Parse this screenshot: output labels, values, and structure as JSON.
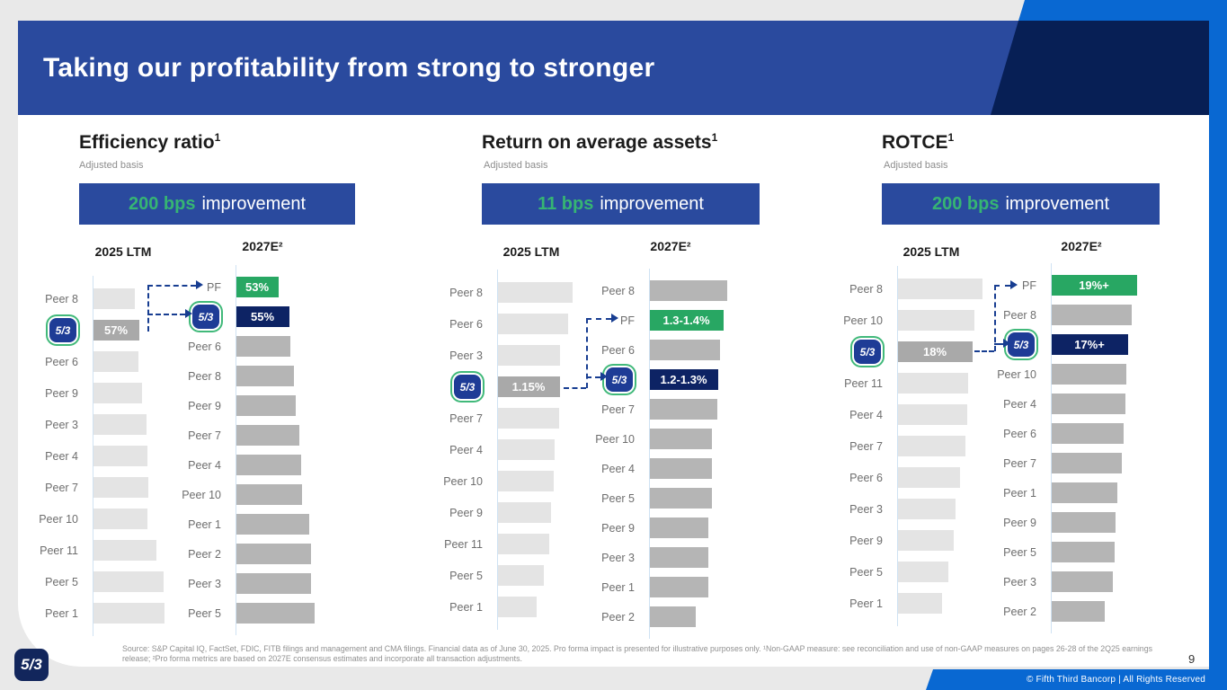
{
  "header": {
    "title": "Taking our profitability from strong to stronger"
  },
  "footer": {
    "footnote": "Source: S&P Capital IQ, FactSet, FDIC, FITB filings and management and CMA filings. Financial data as of June 30, 2025. Pro forma impact is presented for illustrative purposes only. ¹Non-GAAP measure: see reconciliation and use of non-GAAP measures on pages 26-28 of the 2Q25 earnings release; ²Pro forma metrics are based on 2027E consensus estimates and incorporate all transaction adjustments.",
    "page_number": "9",
    "copyright": "© Fifth Third Bancorp | All Rights Reserved"
  },
  "colors": {
    "header_blue": "#2a4a9e",
    "navy": "#071f55",
    "bright_blue": "#0968d2",
    "green": "#28a763",
    "banner_green_text": "#36b573",
    "peer_light": "#e4e4e4",
    "peer_mid": "#b5b5b5",
    "fitb_gray": "#a9a9a9",
    "fitb_navy": "#0d2364"
  },
  "panels": [
    {
      "title": "Efficiency ratio",
      "title_sup": "1",
      "subtitle": "Adjusted basis",
      "banner_highlight": "200 bps",
      "banner_rest": "improvement",
      "col_left": "2025 LTM",
      "col_right": "2027E²"
    },
    {
      "title": "Return on average assets",
      "title_sup": "1",
      "subtitle": "Adjusted basis",
      "banner_highlight": "11 bps",
      "banner_rest": "improvement",
      "col_left": "2025 LTM",
      "col_right": "2027E²"
    },
    {
      "title": "ROTCE",
      "title_sup": "1",
      "subtitle": "Adjusted basis",
      "banner_highlight": "200 bps",
      "banner_rest": "improvement",
      "col_left": "2025 LTM",
      "col_right": "2027E²"
    }
  ],
  "chart_data": [
    {
      "panel": "Efficiency ratio",
      "column": "2025 LTM",
      "type": "bar",
      "orientation": "horizontal",
      "note": "peer bars unlabeled; len = relative bar length (px)",
      "rows": [
        {
          "label": "Peer 8",
          "style": "peer-light",
          "len": 47
        },
        {
          "label": "5/3",
          "logo": true,
          "value": "57%",
          "style": "fitb-gray",
          "len": 52
        },
        {
          "label": "Peer 6",
          "style": "peer-light",
          "len": 51
        },
        {
          "label": "Peer 9",
          "style": "peer-light",
          "len": 55
        },
        {
          "label": "Peer 3",
          "style": "peer-light",
          "len": 60
        },
        {
          "label": "Peer 4",
          "style": "peer-light",
          "len": 61
        },
        {
          "label": "Peer 7",
          "style": "peer-light",
          "len": 62
        },
        {
          "label": "Peer 10",
          "style": "peer-light",
          "len": 61
        },
        {
          "label": "Peer 11",
          "style": "peer-light",
          "len": 71
        },
        {
          "label": "Peer 5",
          "style": "peer-light",
          "len": 79
        },
        {
          "label": "Peer 1",
          "style": "peer-light",
          "len": 80
        }
      ]
    },
    {
      "panel": "Efficiency ratio",
      "column": "2027E²",
      "type": "bar",
      "orientation": "horizontal",
      "rows": [
        {
          "label": "PF",
          "value": "53%",
          "style": "pf-green",
          "len": 48
        },
        {
          "label": "5/3",
          "logo": true,
          "value": "55%",
          "style": "fitb-navy",
          "len": 60
        },
        {
          "label": "Peer 6",
          "style": "peer-mid",
          "len": 61
        },
        {
          "label": "Peer 8",
          "style": "peer-mid",
          "len": 65
        },
        {
          "label": "Peer 9",
          "style": "peer-mid",
          "len": 67
        },
        {
          "label": "Peer 7",
          "style": "peer-mid",
          "len": 71
        },
        {
          "label": "Peer 4",
          "style": "peer-mid",
          "len": 73
        },
        {
          "label": "Peer 10",
          "style": "peer-mid",
          "len": 74
        },
        {
          "label": "Peer 1",
          "style": "peer-mid",
          "len": 82
        },
        {
          "label": "Peer 2",
          "style": "peer-mid",
          "len": 84
        },
        {
          "label": "Peer 3",
          "style": "peer-mid",
          "len": 84
        },
        {
          "label": "Peer 5",
          "style": "peer-mid",
          "len": 88
        }
      ]
    },
    {
      "panel": "Return on average assets",
      "column": "2025 LTM",
      "type": "bar",
      "orientation": "horizontal",
      "rows": [
        {
          "label": "Peer 8",
          "style": "peer-light",
          "len": 84
        },
        {
          "label": "Peer 6",
          "style": "peer-light",
          "len": 79
        },
        {
          "label": "Peer 3",
          "style": "peer-light",
          "len": 70
        },
        {
          "label": "5/3",
          "logo": true,
          "value": "1.15%",
          "style": "fitb-gray",
          "len": 70
        },
        {
          "label": "Peer 7",
          "style": "peer-light",
          "len": 69
        },
        {
          "label": "Peer 4",
          "style": "peer-light",
          "len": 64
        },
        {
          "label": "Peer 10",
          "style": "peer-light",
          "len": 63
        },
        {
          "label": "Peer 9",
          "style": "peer-light",
          "len": 60
        },
        {
          "label": "Peer 11",
          "style": "peer-light",
          "len": 58
        },
        {
          "label": "Peer 5",
          "style": "peer-light",
          "len": 52
        },
        {
          "label": "Peer 1",
          "style": "peer-light",
          "len": 44
        }
      ]
    },
    {
      "panel": "Return on average assets",
      "column": "2027E²",
      "type": "bar",
      "orientation": "horizontal",
      "rows": [
        {
          "label": "Peer 8",
          "style": "peer-mid",
          "len": 87
        },
        {
          "label": "PF",
          "value": "1.3-1.4%",
          "style": "pf-green",
          "len": 83
        },
        {
          "label": "Peer 6",
          "style": "peer-mid",
          "len": 79
        },
        {
          "label": "5/3",
          "logo": true,
          "value": "1.2-1.3%",
          "style": "fitb-navy",
          "len": 77
        },
        {
          "label": "Peer 7",
          "style": "peer-mid",
          "len": 76
        },
        {
          "label": "Peer 10",
          "style": "peer-mid",
          "len": 70
        },
        {
          "label": "Peer 4",
          "style": "peer-mid",
          "len": 70
        },
        {
          "label": "Peer 5",
          "style": "peer-mid",
          "len": 70
        },
        {
          "label": "Peer 9",
          "style": "peer-mid",
          "len": 66
        },
        {
          "label": "Peer 3",
          "style": "peer-mid",
          "len": 66
        },
        {
          "label": "Peer 1",
          "style": "peer-mid",
          "len": 66
        },
        {
          "label": "Peer 2",
          "style": "peer-mid",
          "len": 52
        }
      ]
    },
    {
      "panel": "ROTCE",
      "column": "2025 LTM",
      "type": "bar",
      "orientation": "horizontal",
      "rows": [
        {
          "label": "Peer 8",
          "style": "peer-light",
          "len": 95
        },
        {
          "label": "Peer 10",
          "style": "peer-light",
          "len": 86
        },
        {
          "label": "5/3",
          "logo": true,
          "value": "18%",
          "style": "fitb-gray",
          "len": 84
        },
        {
          "label": "Peer 11",
          "style": "peer-light",
          "len": 79
        },
        {
          "label": "Peer 4",
          "style": "peer-light",
          "len": 78
        },
        {
          "label": "Peer 7",
          "style": "peer-light",
          "len": 76
        },
        {
          "label": "Peer 6",
          "style": "peer-light",
          "len": 70
        },
        {
          "label": "Peer 3",
          "style": "peer-light",
          "len": 65
        },
        {
          "label": "Peer 9",
          "style": "peer-light",
          "len": 63
        },
        {
          "label": "Peer 5",
          "style": "peer-light",
          "len": 57
        },
        {
          "label": "Peer 1",
          "style": "peer-light",
          "len": 50
        }
      ]
    },
    {
      "panel": "ROTCE",
      "column": "2027E²",
      "type": "bar",
      "orientation": "horizontal",
      "rows": [
        {
          "label": "PF",
          "value": "19%+",
          "style": "pf-green",
          "len": 96
        },
        {
          "label": "Peer 8",
          "style": "peer-mid",
          "len": 90
        },
        {
          "label": "5/3",
          "logo": true,
          "value": "17%+",
          "style": "fitb-navy",
          "len": 86
        },
        {
          "label": "Peer 10",
          "style": "peer-mid",
          "len": 84
        },
        {
          "label": "Peer 4",
          "style": "peer-mid",
          "len": 83
        },
        {
          "label": "Peer 6",
          "style": "peer-mid",
          "len": 81
        },
        {
          "label": "Peer 7",
          "style": "peer-mid",
          "len": 79
        },
        {
          "label": "Peer 1",
          "style": "peer-mid",
          "len": 74
        },
        {
          "label": "Peer 9",
          "style": "peer-mid",
          "len": 72
        },
        {
          "label": "Peer 5",
          "style": "peer-mid",
          "len": 71
        },
        {
          "label": "Peer 3",
          "style": "peer-mid",
          "len": 69
        },
        {
          "label": "Peer 2",
          "style": "peer-mid",
          "len": 60
        }
      ]
    }
  ]
}
